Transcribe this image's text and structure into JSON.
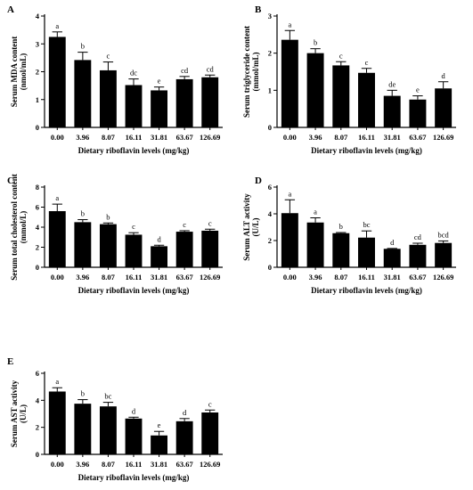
{
  "chart_data": [
    {
      "panel": "A",
      "type": "bar",
      "categories": [
        "0.00",
        "3.96",
        "8.07",
        "16.11",
        "31.81",
        "63.67",
        "126.69"
      ],
      "values": [
        3.25,
        2.42,
        2.05,
        1.52,
        1.33,
        1.73,
        1.8
      ],
      "errors": [
        0.18,
        0.28,
        0.3,
        0.22,
        0.12,
        0.1,
        0.08
      ],
      "labels": [
        "a",
        "b",
        "c",
        "dc",
        "e",
        "cd",
        "cd"
      ],
      "ylim": [
        0,
        4
      ],
      "yticks": [
        0,
        1,
        2,
        3,
        4
      ],
      "ylabel_lines": [
        "Serum MDA content",
        "(nmol/mL)"
      ],
      "xlabel": "Dietary riboflavin levels (mg/kg)"
    },
    {
      "panel": "B",
      "type": "bar",
      "categories": [
        "0.00",
        "3.96",
        "8.07",
        "16.11",
        "31.81",
        "63.67",
        "126.69"
      ],
      "values": [
        2.36,
        2.0,
        1.67,
        1.47,
        0.85,
        0.75,
        1.05
      ],
      "errors": [
        0.25,
        0.12,
        0.1,
        0.12,
        0.15,
        0.1,
        0.18
      ],
      "labels": [
        "a",
        "b",
        "c",
        "c",
        "de",
        "e",
        "d"
      ],
      "ylim": [
        0,
        3
      ],
      "yticks": [
        0,
        1,
        2,
        3
      ],
      "ylabel_lines": [
        "Serum triglyceride content",
        "(mmol/mL)"
      ],
      "xlabel": "Dietary riboflavin levels (mg/kg)"
    },
    {
      "panel": "C",
      "type": "bar",
      "categories": [
        "0.00",
        "3.96",
        "8.07",
        "16.11",
        "31.81",
        "63.67",
        "126.69"
      ],
      "values": [
        5.6,
        4.5,
        4.3,
        3.25,
        2.1,
        3.55,
        3.65
      ],
      "errors": [
        0.7,
        0.25,
        0.12,
        0.2,
        0.1,
        0.1,
        0.15
      ],
      "labels": [
        "a",
        "b",
        "b",
        "c",
        "d",
        "c",
        "c"
      ],
      "ylim": [
        0,
        8
      ],
      "yticks": [
        0,
        2,
        4,
        6,
        8
      ],
      "ylabel_lines": [
        "Serum total cholesterol content",
        "(mmol/L)"
      ],
      "xlabel": "Dietary riboflavin levels (mg/kg)"
    },
    {
      "panel": "D",
      "type": "bar",
      "categories": [
        "0.00",
        "3.96",
        "8.07",
        "16.11",
        "31.81",
        "63.67",
        "126.69"
      ],
      "values": [
        4.05,
        3.35,
        2.55,
        2.22,
        1.38,
        1.68,
        1.82
      ],
      "errors": [
        1.0,
        0.35,
        0.05,
        0.5,
        0.03,
        0.12,
        0.15
      ],
      "labels": [
        "a",
        "a",
        "b",
        "bc",
        "d",
        "cd",
        "bcd"
      ],
      "ylim": [
        0,
        6
      ],
      "yticks": [
        0,
        2,
        4,
        6
      ],
      "ylabel_lines": [
        "Serum ALT activity",
        "(U/L)"
      ],
      "xlabel": "Dietary riboflavin levels (mg/kg)"
    },
    {
      "panel": "E",
      "type": "bar",
      "categories": [
        "0.00",
        "3.96",
        "8.07",
        "16.11",
        "31.81",
        "63.67",
        "126.69"
      ],
      "values": [
        4.65,
        3.75,
        3.55,
        2.65,
        1.4,
        2.45,
        3.1
      ],
      "errors": [
        0.28,
        0.3,
        0.3,
        0.1,
        0.3,
        0.2,
        0.18
      ],
      "labels": [
        "a",
        "b",
        "bc",
        "d",
        "e",
        "d",
        "c"
      ],
      "ylim": [
        0,
        6
      ],
      "yticks": [
        0,
        2,
        4,
        6
      ],
      "ylabel_lines": [
        "Serum AST activity",
        "(U/L)"
      ],
      "xlabel": "Dietary riboflavin levels (mg/kg)"
    }
  ]
}
